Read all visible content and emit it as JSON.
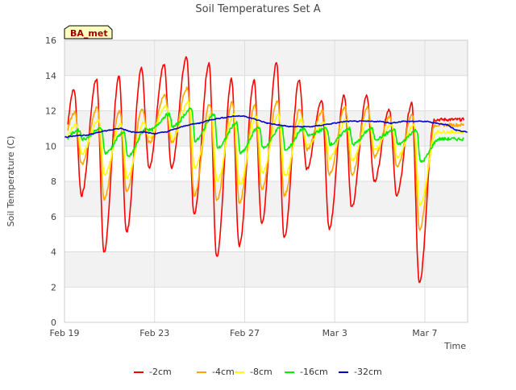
{
  "chart_data": {
    "type": "line",
    "title": "Soil Temperatures Set A",
    "xlabel": "Time",
    "ylabel": "Soil Temperature (C)",
    "annotation": "BA_met",
    "x_start": "Feb 19",
    "x_range_days": [
      0,
      17.9
    ],
    "ylim": [
      0,
      16
    ],
    "yticks": [
      0,
      2,
      4,
      6,
      8,
      10,
      12,
      14,
      16
    ],
    "xticks": [
      {
        "label": "Feb 19",
        "day": 0
      },
      {
        "label": "Feb 23",
        "day": 4
      },
      {
        "label": "Feb 27",
        "day": 8
      },
      {
        "label": "Mar 3",
        "day": 12
      },
      {
        "label": "Mar 7",
        "day": 16
      }
    ],
    "grid": true,
    "legend_position": "bottom",
    "series": [
      {
        "name": "-2cm",
        "color": "#ff0000",
        "daily_max": [
          13.2,
          13.8,
          13.9,
          14.4,
          14.6,
          15.0,
          14.7,
          13.8,
          13.7,
          14.7,
          13.7,
          12.6,
          12.9,
          12.9,
          12.1,
          12.4,
          11.5
        ],
        "daily_min": [
          7.6,
          7.2,
          4.0,
          5.1,
          8.8,
          8.8,
          6.1,
          3.7,
          4.3,
          5.6,
          4.8,
          8.7,
          5.3,
          6.5,
          8.0,
          7.2,
          2.2
        ],
        "noon_offset": 0.42
      },
      {
        "name": "-4cm",
        "color": "#ffa500",
        "daily_max": [
          11.9,
          12.2,
          12.0,
          12.1,
          12.9,
          13.3,
          12.4,
          12.5,
          12.3,
          12.6,
          12.1,
          12.0,
          12.2,
          12.2,
          11.7,
          11.8,
          11.2
        ],
        "daily_min": [
          9.6,
          9.0,
          7.0,
          7.4,
          10.2,
          10.2,
          7.2,
          6.9,
          6.8,
          7.5,
          7.2,
          9.8,
          8.4,
          8.4,
          9.4,
          8.8,
          5.3
        ],
        "noon_offset": 0.46
      },
      {
        "name": "-8cm",
        "color": "#ffff00",
        "daily_max": [
          11.2,
          11.5,
          11.3,
          11.3,
          12.3,
          12.5,
          11.8,
          11.8,
          11.7,
          11.8,
          11.5,
          11.3,
          11.5,
          11.5,
          11.2,
          11.2,
          10.8
        ],
        "daily_min": [
          10.0,
          9.6,
          8.4,
          8.2,
          10.5,
          10.4,
          8.8,
          8.0,
          7.8,
          8.5,
          8.3,
          10.0,
          9.3,
          9.2,
          9.8,
          9.4,
          6.6
        ],
        "noon_offset": 0.52
      },
      {
        "name": "-16cm",
        "color": "#00ee00",
        "daily_max": [
          10.9,
          11.0,
          10.8,
          11.0,
          11.8,
          12.1,
          11.8,
          11.3,
          11.1,
          11.1,
          11.0,
          11.0,
          11.0,
          11.0,
          10.9,
          10.9,
          10.4
        ],
        "daily_min": [
          10.2,
          10.4,
          9.6,
          9.4,
          10.9,
          11.1,
          10.3,
          9.9,
          9.6,
          9.9,
          9.8,
          10.6,
          10.1,
          10.1,
          10.4,
          10.1,
          9.1
        ],
        "noon_offset": 0.65
      },
      {
        "name": "-32cm",
        "color": "#0000cc",
        "x": [
          0.0,
          0.5,
          1.0,
          1.5,
          2.0,
          2.5,
          3.0,
          3.5,
          4.0,
          4.5,
          5.0,
          5.5,
          6.0,
          6.5,
          7.0,
          7.5,
          8.0,
          8.5,
          9.0,
          9.5,
          10.0,
          10.5,
          11.0,
          11.5,
          12.0,
          12.5,
          13.0,
          13.5,
          14.0,
          14.5,
          15.0,
          15.5,
          16.0,
          16.5,
          17.0,
          17.4,
          17.9
        ],
        "values": [
          10.5,
          10.6,
          10.6,
          10.8,
          10.9,
          11.0,
          10.8,
          10.8,
          10.7,
          10.8,
          11.0,
          11.2,
          11.3,
          11.5,
          11.6,
          11.7,
          11.7,
          11.5,
          11.3,
          11.2,
          11.1,
          11.1,
          11.1,
          11.2,
          11.3,
          11.4,
          11.4,
          11.4,
          11.4,
          11.3,
          11.4,
          11.4,
          11.4,
          11.3,
          11.2,
          10.9,
          10.8
        ]
      }
    ]
  }
}
